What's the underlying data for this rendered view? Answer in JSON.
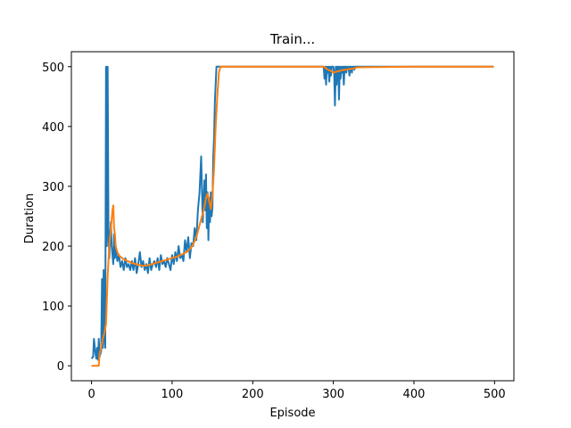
{
  "chart_data": {
    "type": "line",
    "title": "Train...",
    "xlabel": "Episode",
    "ylabel": "Duration",
    "xlim": [
      -25,
      524
    ],
    "ylim": [
      -25,
      525
    ],
    "xticks": [
      0,
      100,
      200,
      300,
      400,
      500
    ],
    "yticks": [
      0,
      100,
      200,
      300,
      400,
      500
    ],
    "grid": false,
    "series": [
      {
        "color": "#1f77b4",
        "x": [
          0,
          2,
          3,
          5,
          6,
          7,
          8,
          9,
          10,
          11,
          12,
          13,
          14,
          15,
          16,
          17,
          18,
          19,
          20,
          21,
          22,
          23,
          24,
          25,
          26,
          27,
          28,
          29,
          30,
          32,
          34,
          36,
          38,
          40,
          42,
          44,
          46,
          48,
          50,
          52,
          54,
          56,
          58,
          60,
          62,
          64,
          66,
          68,
          70,
          72,
          74,
          76,
          78,
          80,
          82,
          84,
          86,
          88,
          90,
          92,
          94,
          96,
          98,
          100,
          102,
          104,
          106,
          108,
          110,
          112,
          114,
          116,
          118,
          120,
          122,
          124,
          126,
          128,
          130,
          132,
          134,
          136,
          138,
          140,
          141,
          142,
          143,
          144,
          145,
          146,
          147,
          148,
          149,
          150,
          151,
          152,
          153,
          155,
          160,
          200,
          250,
          288,
          289,
          290,
          291,
          292,
          293,
          294,
          295,
          296,
          297,
          298,
          300,
          301,
          302,
          303,
          304,
          305,
          306,
          307,
          308,
          309,
          310,
          311,
          312,
          313,
          314,
          315,
          316,
          317,
          318,
          319,
          320,
          321,
          322,
          323,
          324,
          325,
          326,
          327,
          328,
          329,
          330,
          340,
          400,
          450,
          499
        ],
        "y": [
          12,
          15,
          45,
          20,
          12,
          30,
          10,
          45,
          15,
          20,
          25,
          145,
          30,
          160,
          45,
          30,
          500,
          200,
          500,
          230,
          180,
          215,
          240,
          200,
          185,
          170,
          220,
          180,
          200,
          175,
          185,
          165,
          175,
          160,
          180,
          165,
          170,
          160,
          175,
          160,
          180,
          155,
          170,
          190,
          165,
          175,
          160,
          170,
          155,
          180,
          160,
          170,
          175,
          165,
          180,
          160,
          185,
          170,
          175,
          165,
          180,
          170,
          160,
          185,
          170,
          190,
          175,
          200,
          180,
          185,
          175,
          210,
          190,
          215,
          180,
          205,
          200,
          230,
          210,
          260,
          290,
          350,
          240,
          310,
          260,
          320,
          230,
          290,
          210,
          280,
          240,
          290,
          250,
          265,
          350,
          380,
          440,
          500,
          500,
          500,
          500,
          500,
          480,
          500,
          470,
          500,
          490,
          500,
          475,
          500,
          485,
          500,
          500,
          490,
          435,
          500,
          470,
          500,
          500,
          445,
          500,
          480,
          500,
          490,
          500,
          470,
          500,
          500,
          490,
          500,
          495,
          500,
          485,
          500,
          500,
          490,
          500,
          500,
          495,
          500,
          500,
          500,
          500,
          500,
          500,
          500,
          500
        ],
        "name": ""
      },
      {
        "color": "#ff7f0e",
        "x": [
          0,
          5,
          9,
          10,
          12,
          14,
          16,
          18,
          20,
          22,
          24,
          26,
          27,
          28,
          29,
          30,
          32,
          34,
          36,
          38,
          40,
          45,
          50,
          55,
          60,
          65,
          70,
          75,
          80,
          85,
          90,
          95,
          100,
          105,
          110,
          115,
          120,
          125,
          130,
          135,
          140,
          142,
          144,
          146,
          148,
          150,
          152,
          154,
          156,
          158,
          160,
          162,
          200,
          250,
          288,
          290,
          292,
          295,
          298,
          300,
          302,
          305,
          308,
          310,
          315,
          320,
          325,
          330,
          400,
          450,
          499
        ],
        "y": [
          0,
          0,
          0,
          20,
          30,
          45,
          55,
          70,
          150,
          200,
          230,
          260,
          268,
          230,
          220,
          200,
          190,
          185,
          182,
          180,
          178,
          175,
          172,
          170,
          168,
          167,
          168,
          170,
          172,
          174,
          176,
          178,
          180,
          182,
          185,
          188,
          192,
          200,
          215,
          240,
          265,
          280,
          288,
          275,
          262,
          285,
          330,
          400,
          450,
          490,
          500,
          500,
          500,
          500,
          500,
          498,
          496,
          494,
          492,
          490,
          491,
          492,
          493,
          494,
          495,
          496,
          497,
          499,
          500,
          500,
          500
        ],
        "name": ""
      }
    ]
  }
}
